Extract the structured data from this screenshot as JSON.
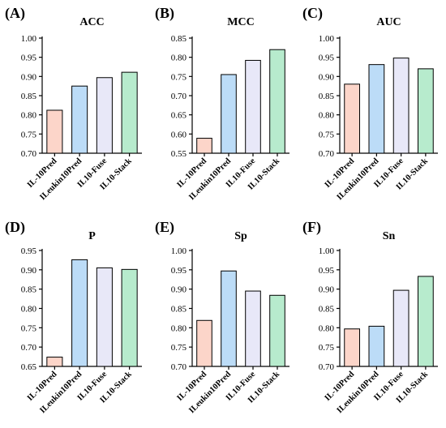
{
  "colors": [
    "#fcd5c9",
    "#bcdcf7",
    "#e8e8f8",
    "#b7ebcd"
  ],
  "chart_data": [
    {
      "type": "bar",
      "panel_label": "(A)",
      "title": "ACC",
      "categories": [
        "IL-10Pred",
        "ILeukin10Pred",
        "IL10-Fuse",
        "IL10-Stack"
      ],
      "values": [
        0.812,
        0.875,
        0.897,
        0.911
      ],
      "ylim": [
        0.7,
        1.0
      ],
      "yticks": [
        "0.70",
        "0.75",
        "0.80",
        "0.85",
        "0.90",
        "0.95",
        "1.00"
      ]
    },
    {
      "type": "bar",
      "panel_label": "(B)",
      "title": "MCC",
      "categories": [
        "IL-10Pred",
        "ILeukin10Pred",
        "IL10-Fuse",
        "IL10-Stack"
      ],
      "values": [
        0.589,
        0.755,
        0.792,
        0.82
      ],
      "ylim": [
        0.55,
        0.85
      ],
      "yticks": [
        "0.55",
        "0.60",
        "0.65",
        "0.70",
        "0.75",
        "0.80",
        "0.85"
      ]
    },
    {
      "type": "bar",
      "panel_label": "(C)",
      "title": "AUC",
      "categories": [
        "IL-10Pred",
        "ILeukin10Pred",
        "IL10-Fuse",
        "IL10-Stack"
      ],
      "values": [
        0.88,
        0.931,
        0.948,
        0.92
      ],
      "ylim": [
        0.7,
        1.0
      ],
      "yticks": [
        "0.70",
        "0.75",
        "0.80",
        "0.85",
        "0.90",
        "0.95",
        "1.00"
      ]
    },
    {
      "type": "bar",
      "panel_label": "(D)",
      "title": "P",
      "categories": [
        "IL-10Pred",
        "ILeukin10Pred",
        "IL10-Fuse",
        "IL10-Stack"
      ],
      "values": [
        0.674,
        0.926,
        0.905,
        0.901
      ],
      "ylim": [
        0.65,
        0.95
      ],
      "yticks": [
        "0.65",
        "0.70",
        "0.75",
        "0.80",
        "0.85",
        "0.90",
        "0.95"
      ]
    },
    {
      "type": "bar",
      "panel_label": "(E)",
      "title": "Sp",
      "categories": [
        "IL-10Pred",
        "ILeukin10Pred",
        "IL10-Fuse",
        "IL10-Stack"
      ],
      "values": [
        0.819,
        0.947,
        0.895,
        0.884
      ],
      "ylim": [
        0.7,
        1.0
      ],
      "yticks": [
        "0.70",
        "0.75",
        "0.80",
        "0.85",
        "0.90",
        "0.95",
        "1.00"
      ]
    },
    {
      "type": "bar",
      "panel_label": "(F)",
      "title": "Sn",
      "categories": [
        "IL-10Pred",
        "ILeukin10Pred",
        "IL10-Fuse",
        "IL10-Stack"
      ],
      "values": [
        0.797,
        0.804,
        0.897,
        0.933
      ],
      "ylim": [
        0.7,
        1.0
      ],
      "yticks": [
        "0.70",
        "0.75",
        "0.80",
        "0.85",
        "0.90",
        "0.95",
        "1.00"
      ]
    }
  ]
}
